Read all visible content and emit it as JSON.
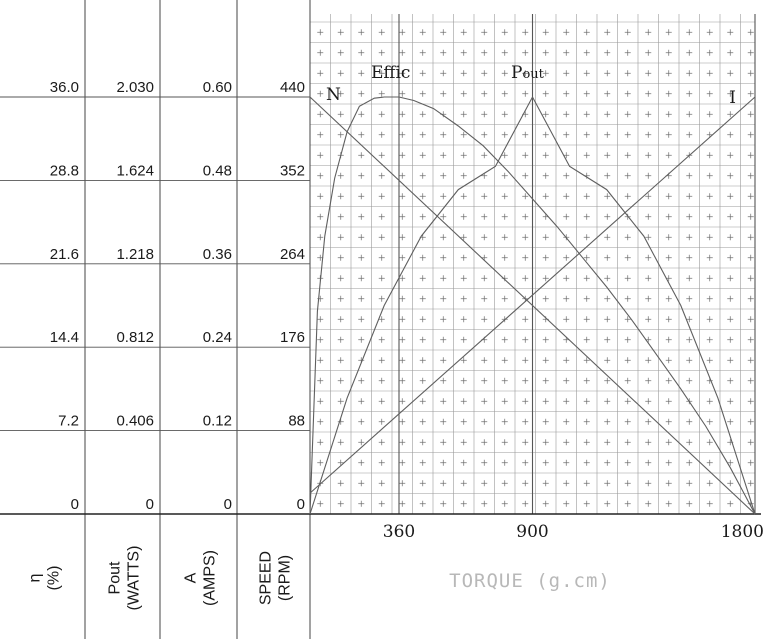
{
  "chart_data": {
    "type": "line",
    "x_ticks": [
      {
        "value": 360,
        "label": "360"
      },
      {
        "value": 900,
        "label": "900"
      },
      {
        "value": 1800,
        "label": "1800"
      }
    ],
    "xlabel": "TORQUE (g.cm)",
    "xlim": [
      0,
      1800
    ],
    "grid": true,
    "y_axes": [
      {
        "key": "eff",
        "label_line1": "η",
        "label_line2": "(%)",
        "ticks": [
          "0",
          "7.2",
          "14.4",
          "21.6",
          "28.8",
          "36.0"
        ],
        "ylim": [
          0,
          36
        ]
      },
      {
        "key": "pout",
        "label_line1": "Pout",
        "label_line2": "(WATTS)",
        "ticks": [
          "0",
          "0.406",
          "0.812",
          "1.218",
          "1.624",
          "2.030"
        ],
        "ylim": [
          0,
          2.03
        ]
      },
      {
        "key": "amps",
        "label_line1": "A",
        "label_line2": "(AMPS)",
        "ticks": [
          "0",
          "0.12",
          "0.24",
          "0.36",
          "0.48",
          "0.60"
        ],
        "ylim": [
          0,
          0.6
        ]
      },
      {
        "key": "speed",
        "label_line1": "SPEED",
        "label_line2": "(RPM)",
        "ticks": [
          "0",
          "88",
          "176",
          "264",
          "352",
          "440"
        ],
        "ylim": [
          0,
          440
        ]
      }
    ],
    "series": [
      {
        "name": "N",
        "axis": "speed",
        "x": [
          0,
          1800
        ],
        "y": [
          440,
          0
        ]
      },
      {
        "name": "I",
        "axis": "amps",
        "x": [
          0,
          1800
        ],
        "y": [
          0.03,
          0.6
        ]
      },
      {
        "name": "Pout",
        "axis": "pout",
        "x": [
          0,
          150,
          300,
          450,
          600,
          750,
          900,
          1050,
          1200,
          1350,
          1500,
          1650,
          1800
        ],
        "y": [
          0,
          0.564,
          1.015,
          1.353,
          1.579,
          1.692,
          2.03,
          1.692,
          1.579,
          1.353,
          1.015,
          0.564,
          0
        ]
      },
      {
        "name": "Effic",
        "axis": "eff",
        "x": [
          0,
          30,
          60,
          100,
          150,
          200,
          260,
          300,
          360,
          420,
          500,
          600,
          700,
          800,
          900,
          1000,
          1100,
          1200,
          1300,
          1400,
          1500,
          1600,
          1700,
          1750,
          1800
        ],
        "y": [
          0,
          17.5,
          24,
          29,
          33,
          35.2,
          35.9,
          36,
          36,
          35.7,
          35,
          33.5,
          31.8,
          29.6,
          27.2,
          24.8,
          22.2,
          19.6,
          16.8,
          13.8,
          10.8,
          7.6,
          4.0,
          2.0,
          0
        ]
      }
    ]
  }
}
